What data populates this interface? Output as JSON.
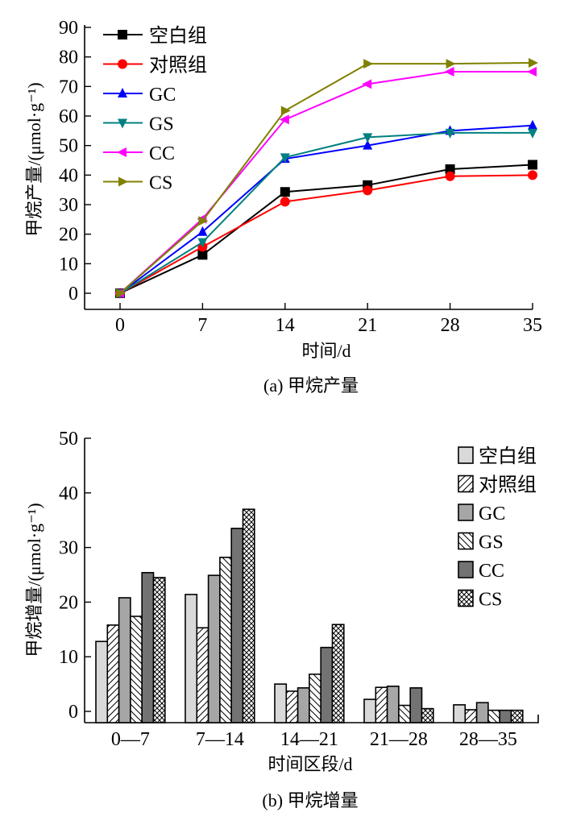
{
  "chart_data": [
    {
      "type": "line",
      "caption": "(a) 甲烷产量",
      "title": "",
      "xlabel": "时间/d",
      "ylabel": "甲烷产量/(μmol·g⁻¹)",
      "x": [
        0,
        7,
        14,
        21,
        28,
        35
      ],
      "x_ticks": [
        "0",
        "7",
        "14",
        "21",
        "28",
        "35"
      ],
      "y_ticks": [
        "0",
        "10",
        "20",
        "30",
        "40",
        "50",
        "60",
        "70",
        "80",
        "90"
      ],
      "xlim": [
        -4,
        35
      ],
      "ylim": [
        -5,
        90
      ],
      "grid": false,
      "legend_position": "top-left",
      "series": [
        {
          "name": "空白组",
          "color": "#000000",
          "marker": "square",
          "values": [
            0,
            13.0,
            34.3,
            36.6,
            42.0,
            43.5
          ]
        },
        {
          "name": "对照组",
          "color": "#ff0000",
          "marker": "circle",
          "values": [
            0,
            15.7,
            31.0,
            34.8,
            39.6,
            40.0
          ]
        },
        {
          "name": "GC",
          "color": "#0000ff",
          "marker": "triangle-up",
          "values": [
            0,
            20.8,
            45.5,
            50.0,
            55.0,
            56.8
          ]
        },
        {
          "name": "GS",
          "color": "#008080",
          "marker": "triangle-down",
          "values": [
            0,
            17.3,
            46.0,
            52.8,
            54.3,
            54.3
          ]
        },
        {
          "name": "CC",
          "color": "#ff00ff",
          "marker": "triangle-left",
          "values": [
            0,
            25.2,
            58.8,
            70.8,
            75.0,
            75.0
          ]
        },
        {
          "name": "CS",
          "color": "#808000",
          "marker": "triangle-right",
          "values": [
            0,
            24.5,
            61.8,
            77.7,
            77.7,
            78.0
          ]
        }
      ]
    },
    {
      "type": "bar",
      "caption": "(b) 甲烷增量",
      "title": "",
      "xlabel": "时间区段/d",
      "ylabel": "甲烷增量/(μmol·g⁻¹)",
      "categories": [
        "0—7",
        "7—14",
        "14—21",
        "21—28",
        "28—35"
      ],
      "y_ticks": [
        "0",
        "10",
        "20",
        "30",
        "40",
        "50"
      ],
      "ylim": [
        -2,
        50
      ],
      "grid": false,
      "legend_position": "top-right",
      "series": [
        {
          "name": "空白组",
          "fill": "#d9d9d9",
          "pattern": "solid",
          "values": [
            12.8,
            21.4,
            5.0,
            2.2,
            1.2
          ]
        },
        {
          "name": "对照组",
          "fill": "#ffffff",
          "pattern": "forward-hatch",
          "values": [
            15.8,
            15.3,
            3.7,
            4.4,
            0.3
          ]
        },
        {
          "name": "GC",
          "fill": "#a6a6a6",
          "pattern": "solid",
          "values": [
            20.8,
            24.9,
            4.3,
            4.6,
            1.6
          ]
        },
        {
          "name": "GS",
          "fill": "#ffffff",
          "pattern": "back-hatch",
          "values": [
            17.4,
            28.2,
            6.8,
            1.1,
            0.2
          ]
        },
        {
          "name": "CC",
          "fill": "#737373",
          "pattern": "solid",
          "values": [
            25.4,
            33.5,
            11.7,
            4.3,
            0.2
          ]
        },
        {
          "name": "CS",
          "fill": "#ffffff",
          "pattern": "cross-hatch",
          "values": [
            24.5,
            37.0,
            15.9,
            0.5,
            0.2
          ]
        }
      ]
    }
  ]
}
